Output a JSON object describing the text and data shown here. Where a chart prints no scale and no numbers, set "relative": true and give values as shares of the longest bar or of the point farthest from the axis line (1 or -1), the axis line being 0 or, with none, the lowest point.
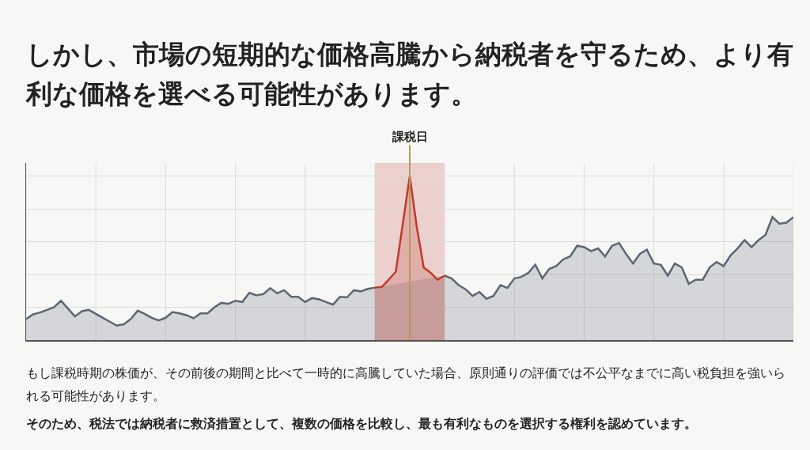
{
  "chart_data": {
    "type": "area",
    "title": "しかし、市場の短期的な価格高騰から納税者を守るため、より有利な価格を選べる可能性があります。",
    "relative": true,
    "grid": true,
    "marker": "none",
    "line_style": "solid",
    "categories": [
      null,
      null,
      null,
      null,
      null,
      null,
      null,
      null,
      null,
      null,
      null,
      null,
      null,
      null,
      null,
      null,
      null,
      null,
      null,
      null,
      null,
      null,
      null,
      null,
      null,
      null,
      null,
      null,
      null,
      null,
      null,
      null,
      null,
      null,
      null,
      null,
      null,
      null,
      null,
      null,
      null,
      null,
      null,
      null,
      null,
      null,
      null,
      null,
      null,
      null,
      null,
      null,
      null,
      null,
      null,
      null,
      null,
      null,
      null,
      null,
      null,
      null,
      null,
      null,
      null,
      null,
      null,
      null,
      null,
      null,
      null,
      null,
      null,
      null,
      null,
      null,
      null,
      null,
      null,
      null,
      null,
      null,
      null,
      null,
      null,
      null,
      null,
      null,
      null,
      null,
      null,
      null,
      null,
      null,
      null,
      null,
      null,
      null,
      null,
      null,
      null,
      null,
      null,
      null,
      null,
      null,
      null,
      null,
      null,
      null,
      null
    ],
    "series": [
      {
        "color": "#5b6675",
        "values": [
          0.128,
          0.157,
          0.168,
          0.184,
          0.2,
          0.24,
          0.192,
          0.144,
          0.176,
          0.184,
          0.16,
          0.136,
          0.112,
          0.088,
          0.096,
          0.128,
          0.179,
          0.16,
          0.136,
          0.12,
          0.136,
          0.171,
          0.163,
          0.152,
          0.133,
          0.163,
          0.163,
          0.2,
          0.227,
          0.221,
          0.24,
          0.232,
          0.288,
          0.273,
          0.28,
          0.317,
          0.285,
          0.304,
          0.264,
          0.264,
          0.232,
          0.256,
          0.248,
          0.232,
          0.216,
          0.264,
          0.26,
          0.304,
          0.297,
          0.312,
          0.32,
          null,
          null,
          null,
          null,
          null,
          null,
          null,
          null,
          null,
          0.393,
          0.376,
          0.335,
          0.31,
          0.269,
          0.293,
          0.252,
          0.269,
          0.335,
          0.318,
          0.376,
          0.385,
          0.41,
          0.459,
          0.376,
          0.434,
          0.451,
          0.492,
          0.51,
          0.575,
          0.567,
          0.542,
          0.559,
          0.51,
          0.575,
          0.592,
          0.526,
          0.467,
          0.526,
          0.551,
          0.467,
          0.459,
          0.393,
          0.467,
          0.443,
          0.343,
          0.368,
          0.368,
          0.443,
          0.476,
          0.451,
          0.517,
          0.559,
          0.609,
          0.567,
          0.609,
          0.641,
          0.75,
          0.709,
          0.716,
          0.75
        ]
      },
      {
        "color": "#c0392b",
        "values": [
          null,
          null,
          null,
          null,
          null,
          null,
          null,
          null,
          null,
          null,
          null,
          null,
          null,
          null,
          null,
          null,
          null,
          null,
          null,
          null,
          null,
          null,
          null,
          null,
          null,
          null,
          null,
          null,
          null,
          null,
          null,
          null,
          null,
          null,
          null,
          null,
          null,
          null,
          null,
          null,
          null,
          null,
          null,
          null,
          null,
          null,
          null,
          null,
          null,
          null,
          0.32,
          0.324,
          0.369,
          0.417,
          0.707,
          1.0,
          0.692,
          0.442,
          0.41,
          0.368,
          0.393,
          null,
          null,
          null,
          null,
          null,
          null,
          null,
          null,
          null,
          null,
          null,
          null,
          null,
          null,
          null,
          null,
          null,
          null,
          null,
          null,
          null,
          null,
          null,
          null,
          null,
          null,
          null,
          null,
          null,
          null,
          null,
          null,
          null,
          null,
          null,
          null,
          null,
          null,
          null,
          null,
          null,
          null,
          null,
          null,
          null,
          null,
          null,
          null,
          null,
          null
        ]
      }
    ],
    "ref_lines": [
      {
        "axis": "x",
        "label": "課税日",
        "color": "#b8965a",
        "line_style": "solid"
      }
    ],
    "annotations": [
      "もし課税時期の株価が、その前後の期間と比べて一時的に高騰していた場合、原則通りの評価では不公平なまでに高い税負担を強いられる可能性があります。",
      "そのため、税法では納税者に救済措置として、複数の価格を比較し、最も有利なものを選択する権利を認めています。"
    ]
  }
}
